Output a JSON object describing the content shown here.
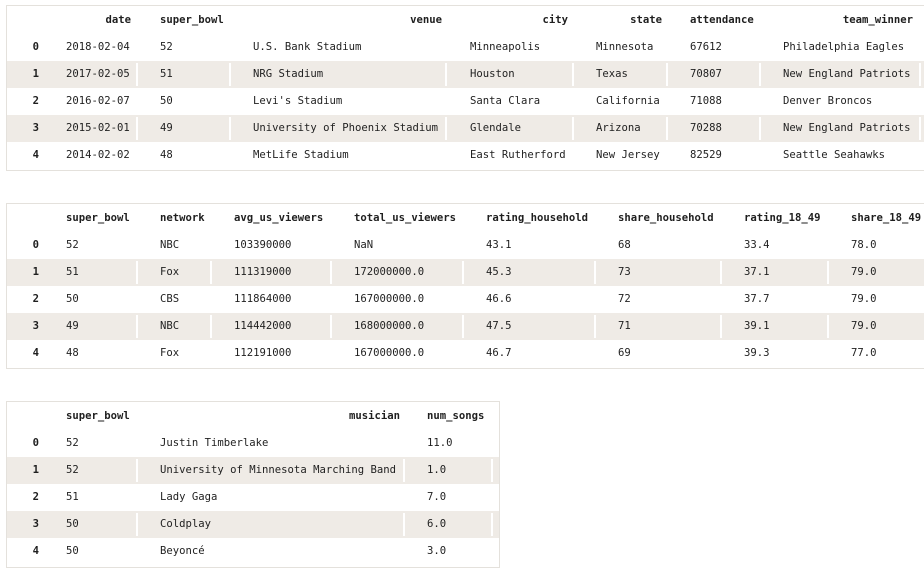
{
  "tables": [
    {
      "columns": [
        "date",
        "super_bowl",
        "venue",
        "city",
        "state",
        "attendance",
        "team_winner"
      ],
      "index": [
        "0",
        "1",
        "2",
        "3",
        "4"
      ],
      "rows": [
        [
          "2018-02-04",
          "52",
          "U.S. Bank Stadium",
          "Minneapolis",
          "Minnesota",
          "67612",
          "Philadelphia Eagles"
        ],
        [
          "2017-02-05",
          "51",
          "NRG Stadium",
          "Houston",
          "Texas",
          "70807",
          "New England Patriots"
        ],
        [
          "2016-02-07",
          "50",
          "Levi's Stadium",
          "Santa Clara",
          "California",
          "71088",
          "Denver Broncos"
        ],
        [
          "2015-02-01",
          "49",
          "University of Phoenix Stadium",
          "Glendale",
          "Arizona",
          "70288",
          "New England Patriots"
        ],
        [
          "2014-02-02",
          "48",
          "MetLife Stadium",
          "East Rutherford",
          "New Jersey",
          "82529",
          "Seattle Seahawks"
        ]
      ]
    },
    {
      "columns": [
        "super_bowl",
        "network",
        "avg_us_viewers",
        "total_us_viewers",
        "rating_household",
        "share_household",
        "rating_18_49",
        "share_18_49"
      ],
      "index": [
        "0",
        "1",
        "2",
        "3",
        "4"
      ],
      "rows": [
        [
          "52",
          "NBC",
          "103390000",
          "NaN",
          "43.1",
          "68",
          "33.4",
          "78.0"
        ],
        [
          "51",
          "Fox",
          "111319000",
          "172000000.0",
          "45.3",
          "73",
          "37.1",
          "79.0"
        ],
        [
          "50",
          "CBS",
          "111864000",
          "167000000.0",
          "46.6",
          "72",
          "37.7",
          "79.0"
        ],
        [
          "49",
          "NBC",
          "114442000",
          "168000000.0",
          "47.5",
          "71",
          "39.1",
          "79.0"
        ],
        [
          "48",
          "Fox",
          "112191000",
          "167000000.0",
          "46.7",
          "69",
          "39.3",
          "77.0"
        ]
      ]
    },
    {
      "columns": [
        "super_bowl",
        "musician",
        "num_songs"
      ],
      "index": [
        "0",
        "1",
        "2",
        "3",
        "4"
      ],
      "rows": [
        [
          "52",
          "Justin Timberlake",
          "11.0"
        ],
        [
          "52",
          "University of Minnesota Marching Band",
          "1.0"
        ],
        [
          "51",
          "Lady Gaga",
          "7.0"
        ],
        [
          "50",
          "Coldplay",
          "6.0"
        ],
        [
          "50",
          "Beyoncé",
          "3.0"
        ]
      ]
    }
  ]
}
